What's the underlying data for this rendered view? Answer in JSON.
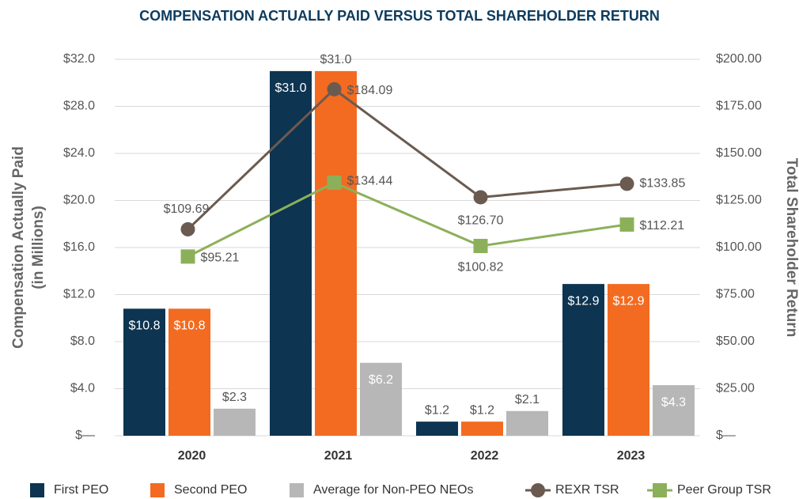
{
  "chart_data": {
    "type": "bar",
    "title": "COMPENSATION ACTUALLY PAID VERSUS TOTAL SHAREHOLDER RETURN",
    "y_label": [
      "Compensation Actually Paid",
      "(in Millions)"
    ],
    "y2_label": "Total Shareholder Return",
    "categories": [
      "2020",
      "2021",
      "2022",
      "2023"
    ],
    "series": [
      {
        "name": "First PEO",
        "type": "bar",
        "color": "#0d3451",
        "values": [
          10.8,
          31.0,
          1.2,
          12.9
        ],
        "value_labels": [
          "$10.8",
          "$31.0",
          "$1.2",
          "$12.9"
        ]
      },
      {
        "name": "Second PEO",
        "type": "bar",
        "color": "#f26b21",
        "values": [
          10.8,
          31.0,
          1.2,
          12.9
        ],
        "value_labels": [
          "$10.8",
          "$31.0",
          "$1.2",
          "$12.9"
        ]
      },
      {
        "name": "Average for Non-PEO NEOs",
        "type": "bar",
        "color": "#b7b7b7",
        "values": [
          2.3,
          6.2,
          2.1,
          4.3
        ],
        "value_labels": [
          "$2.3",
          "$6.2",
          "$2.1",
          "$4.3"
        ]
      },
      {
        "name": "REXR TSR",
        "type": "line",
        "marker": "circle",
        "axis": "y2",
        "color": "#6b5a50",
        "values": [
          109.69,
          184.09,
          126.7,
          133.85
        ],
        "value_labels": [
          "$109.69",
          "$184.09",
          "$126.70",
          "$133.85"
        ]
      },
      {
        "name": "Peer Group TSR",
        "type": "line",
        "marker": "square",
        "axis": "y2",
        "color": "#8cb05a",
        "values": [
          95.21,
          134.44,
          100.82,
          112.21
        ],
        "value_labels": [
          "$95.21",
          "$134.44",
          "$100.82",
          "$112.21"
        ]
      }
    ],
    "ylim": [
      0,
      32
    ],
    "yticks": [
      {
        "value": 0,
        "label": "$—"
      },
      {
        "value": 4,
        "label": "$4.0"
      },
      {
        "value": 8,
        "label": "$8.0"
      },
      {
        "value": 12,
        "label": "$12.0"
      },
      {
        "value": 16,
        "label": "$16.0"
      },
      {
        "value": 20,
        "label": "$20.0"
      },
      {
        "value": 24,
        "label": "$24.0"
      },
      {
        "value": 28,
        "label": "$28.0"
      },
      {
        "value": 32,
        "label": "$32.0"
      }
    ],
    "y2lim": [
      0,
      200
    ],
    "y2ticks": [
      {
        "value": 0,
        "label": "$—"
      },
      {
        "value": 25,
        "label": "$25.00"
      },
      {
        "value": 50,
        "label": "$50.00"
      },
      {
        "value": 75,
        "label": "$75.00"
      },
      {
        "value": 100,
        "label": "$100.00"
      },
      {
        "value": 125,
        "label": "$125.00"
      },
      {
        "value": 150,
        "label": "$150.00"
      },
      {
        "value": 175,
        "label": "$175.00"
      },
      {
        "value": 200,
        "label": "$200.00"
      }
    ],
    "grid": true,
    "legend": "bottom"
  }
}
